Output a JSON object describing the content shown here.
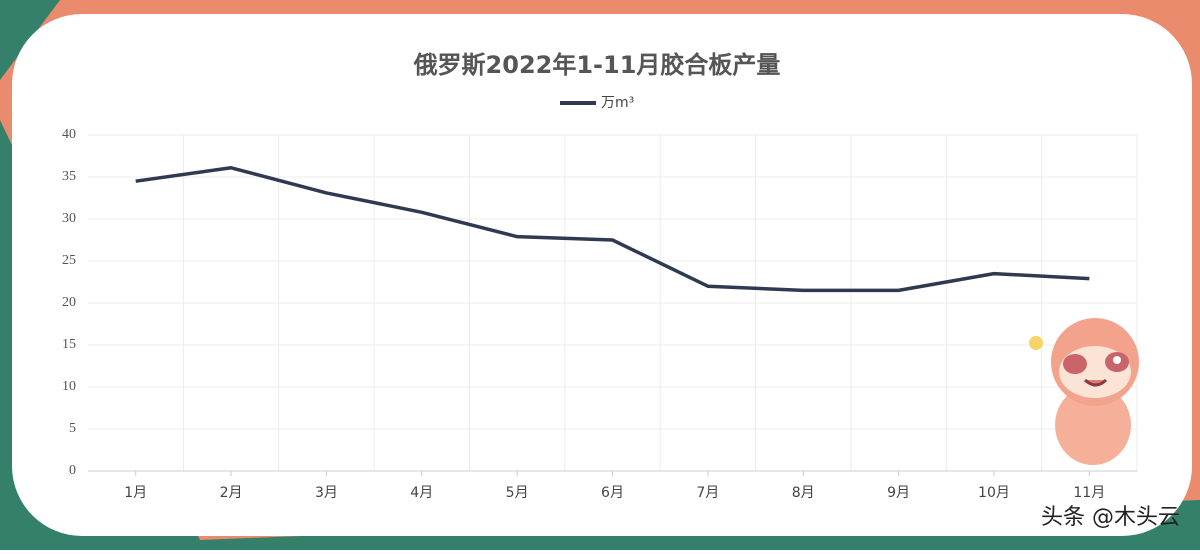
{
  "chart_data": {
    "type": "line",
    "title": "俄罗斯2022年1-11月胶合板产量",
    "categories": [
      "1月",
      "2月",
      "3月",
      "4月",
      "5月",
      "6月",
      "7月",
      "8月",
      "9月",
      "10月",
      "11月"
    ],
    "series": [
      {
        "name": "万m³",
        "color": "#2f3a52",
        "values": [
          34.5,
          36.1,
          33.1,
          30.8,
          27.9,
          27.5,
          22.0,
          21.5,
          21.5,
          23.5,
          22.9
        ]
      }
    ],
    "ylim": [
      0,
      40
    ],
    "yticks": [
      0,
      5,
      10,
      15,
      20,
      25,
      30,
      35,
      40
    ],
    "grid": true,
    "legend": "top"
  },
  "watermark": "头条 @木头云"
}
